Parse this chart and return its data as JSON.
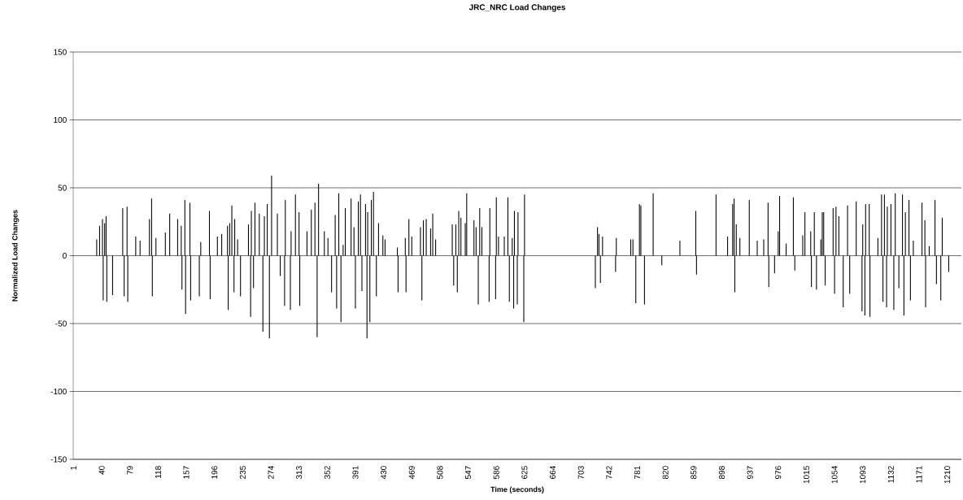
{
  "chart_data": {
    "type": "bar",
    "title": "JRC_NRC Load Changes",
    "xlabel": "Time (seconds)",
    "ylabel": "Normalized Load Changes",
    "x": [
      33,
      37,
      41,
      42,
      44,
      46,
      47,
      55,
      69,
      71,
      75,
      76,
      87,
      93,
      106,
      109,
      110,
      115,
      128,
      134,
      145,
      150,
      151,
      155,
      156,
      162,
      163,
      175,
      177,
      189,
      190,
      200,
      206,
      214,
      215,
      217,
      220,
      223,
      224,
      228,
      232,
      243,
      246,
      247,
      250,
      252,
      258,
      263,
      265,
      269,
      272,
      275,
      283,
      287,
      293,
      294,
      301,
      302,
      308,
      313,
      314,
      324,
      330,
      335,
      338,
      340,
      348,
      353,
      358,
      363,
      365,
      368,
      371,
      374,
      377,
      385,
      389,
      391,
      395,
      398,
      400,
      405,
      407,
      408,
      411,
      413,
      416,
      420,
      423,
      429,
      432,
      449,
      450,
      460,
      461,
      465,
      469,
      481,
      483,
      485,
      489,
      495,
      498,
      502,
      525,
      527,
      530,
      532,
      534,
      537,
      543,
      545,
      555,
      558,
      561,
      563,
      566,
      576,
      577,
      585,
      586,
      589,
      597,
      602,
      604,
      608,
      610,
      611,
      615,
      616,
      624,
      625,
      723,
      726,
      728,
      730,
      733,
      751,
      752,
      772,
      775,
      779,
      784,
      786,
      791,
      803,
      815,
      840,
      862,
      863,
      890,
      906,
      913,
      915,
      916,
      918,
      923,
      936,
      947,
      956,
      962,
      963,
      971,
      976,
      978,
      987,
      997,
      999,
      1010,
      1013,
      1021,
      1022,
      1026,
      1029,
      1035,
      1037,
      1039,
      1041,
      1052,
      1054,
      1056,
      1060,
      1066,
      1072,
      1075,
      1084,
      1092,
      1093,
      1096,
      1097,
      1102,
      1103,
      1114,
      1119,
      1121,
      1123,
      1126,
      1127,
      1132,
      1136,
      1138,
      1143,
      1148,
      1150,
      1152,
      1157,
      1159,
      1163,
      1175,
      1179,
      1180,
      1185,
      1193,
      1195,
      1201,
      1203,
      1212
    ],
    "values": [
      12,
      22,
      27,
      -33,
      24,
      29,
      -34,
      -29,
      35,
      -30,
      36,
      -34,
      14,
      11,
      27,
      42,
      -30,
      13,
      17,
      31,
      27,
      22,
      -25,
      41,
      -43,
      39,
      -33,
      -30,
      10,
      33,
      -32,
      14,
      16,
      22,
      -40,
      24,
      37,
      -27,
      27,
      12,
      -30,
      23,
      -45,
      33,
      -24,
      39,
      31,
      -56,
      29,
      38,
      -61,
      59,
      31,
      -15,
      -37,
      41,
      -40,
      18,
      45,
      32,
      -37,
      18,
      34,
      39,
      -60,
      53,
      18,
      13,
      -27,
      30,
      -39,
      46,
      -49,
      8,
      35,
      42,
      21,
      -39,
      40,
      45,
      -26,
      38,
      -61,
      32,
      -49,
      41,
      47,
      -30,
      24,
      15,
      12,
      6,
      -27,
      13,
      -27,
      27,
      14,
      21,
      -33,
      26,
      27,
      20,
      31,
      12,
      23,
      -22,
      23,
      -27,
      33,
      28,
      24,
      46,
      26,
      21,
      -36,
      35,
      21,
      -34,
      35,
      -32,
      43,
      14,
      14,
      43,
      -34,
      13,
      -39,
      33,
      -36,
      32,
      -49,
      45,
      -24,
      21,
      16,
      -20,
      14,
      -12,
      13,
      12,
      12,
      -35,
      38,
      37,
      -36,
      46,
      -7,
      11,
      33,
      -14,
      45,
      14,
      38,
      42,
      -27,
      23,
      13,
      41,
      11,
      12,
      39,
      -23,
      -13,
      18,
      44,
      9,
      43,
      -11,
      15,
      32,
      18,
      -23,
      32,
      -25,
      12,
      32,
      32,
      -22,
      35,
      -28,
      36,
      29,
      -38,
      37,
      -28,
      40,
      -41,
      23,
      -44,
      38,
      38,
      -45,
      13,
      45,
      -34,
      45,
      -38,
      36,
      38,
      -40,
      46,
      -24,
      45,
      -44,
      32,
      41,
      -33,
      11,
      39,
      26,
      -38,
      7,
      41,
      -21,
      -33,
      28,
      -12
    ],
    "color": "#000000",
    "xlim": [
      0.5,
      1229.5
    ],
    "xticks": [
      1,
      40,
      79,
      118,
      157,
      196,
      235,
      274,
      313,
      352,
      391,
      430,
      469,
      508,
      547,
      586,
      625,
      664,
      703,
      742,
      781,
      820,
      859,
      898,
      937,
      976,
      1015,
      1054,
      1093,
      1132,
      1171,
      1210
    ],
    "ylim": [
      -150,
      150
    ],
    "yticks": [
      -150,
      -100,
      -50,
      0,
      50,
      100,
      150
    ],
    "grid": "y"
  }
}
